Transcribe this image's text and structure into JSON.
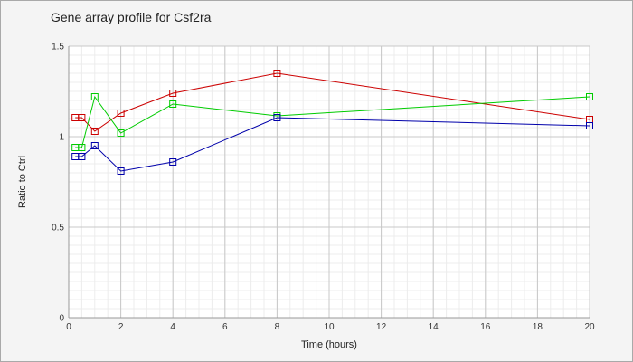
{
  "chart_data": {
    "type": "line",
    "title": "Gene array profile for Csf2ra",
    "xlabel": "Time (hours)",
    "ylabel": "Ratio to Ctrl",
    "xlim": [
      0,
      20
    ],
    "ylim": [
      0,
      1.5
    ],
    "x_ticks": [
      0,
      2,
      4,
      6,
      8,
      10,
      12,
      14,
      16,
      18,
      20
    ],
    "y_ticks": [
      0,
      0.5,
      1,
      1.5
    ],
    "y_tick_labels": [
      "0",
      "0.5",
      "1",
      "1.5"
    ],
    "grid": true,
    "legend": "none",
    "marker": "square",
    "series": [
      {
        "color": "#cc0000",
        "x": [
          0.25,
          0.5,
          1,
          2,
          4,
          8,
          20
        ],
        "y": [
          1.105,
          1.105,
          1.03,
          1.13,
          1.24,
          1.35,
          1.095
        ]
      },
      {
        "color": "#00cc00",
        "x": [
          0.25,
          0.5,
          1,
          2,
          4,
          8,
          20
        ],
        "y": [
          0.94,
          0.94,
          1.22,
          1.02,
          1.18,
          1.115,
          1.22
        ]
      },
      {
        "color": "#0000aa",
        "x": [
          0.25,
          0.5,
          1,
          2,
          4,
          8,
          20
        ],
        "y": [
          0.89,
          0.89,
          0.95,
          0.81,
          0.86,
          1.105,
          1.06
        ]
      }
    ]
  }
}
